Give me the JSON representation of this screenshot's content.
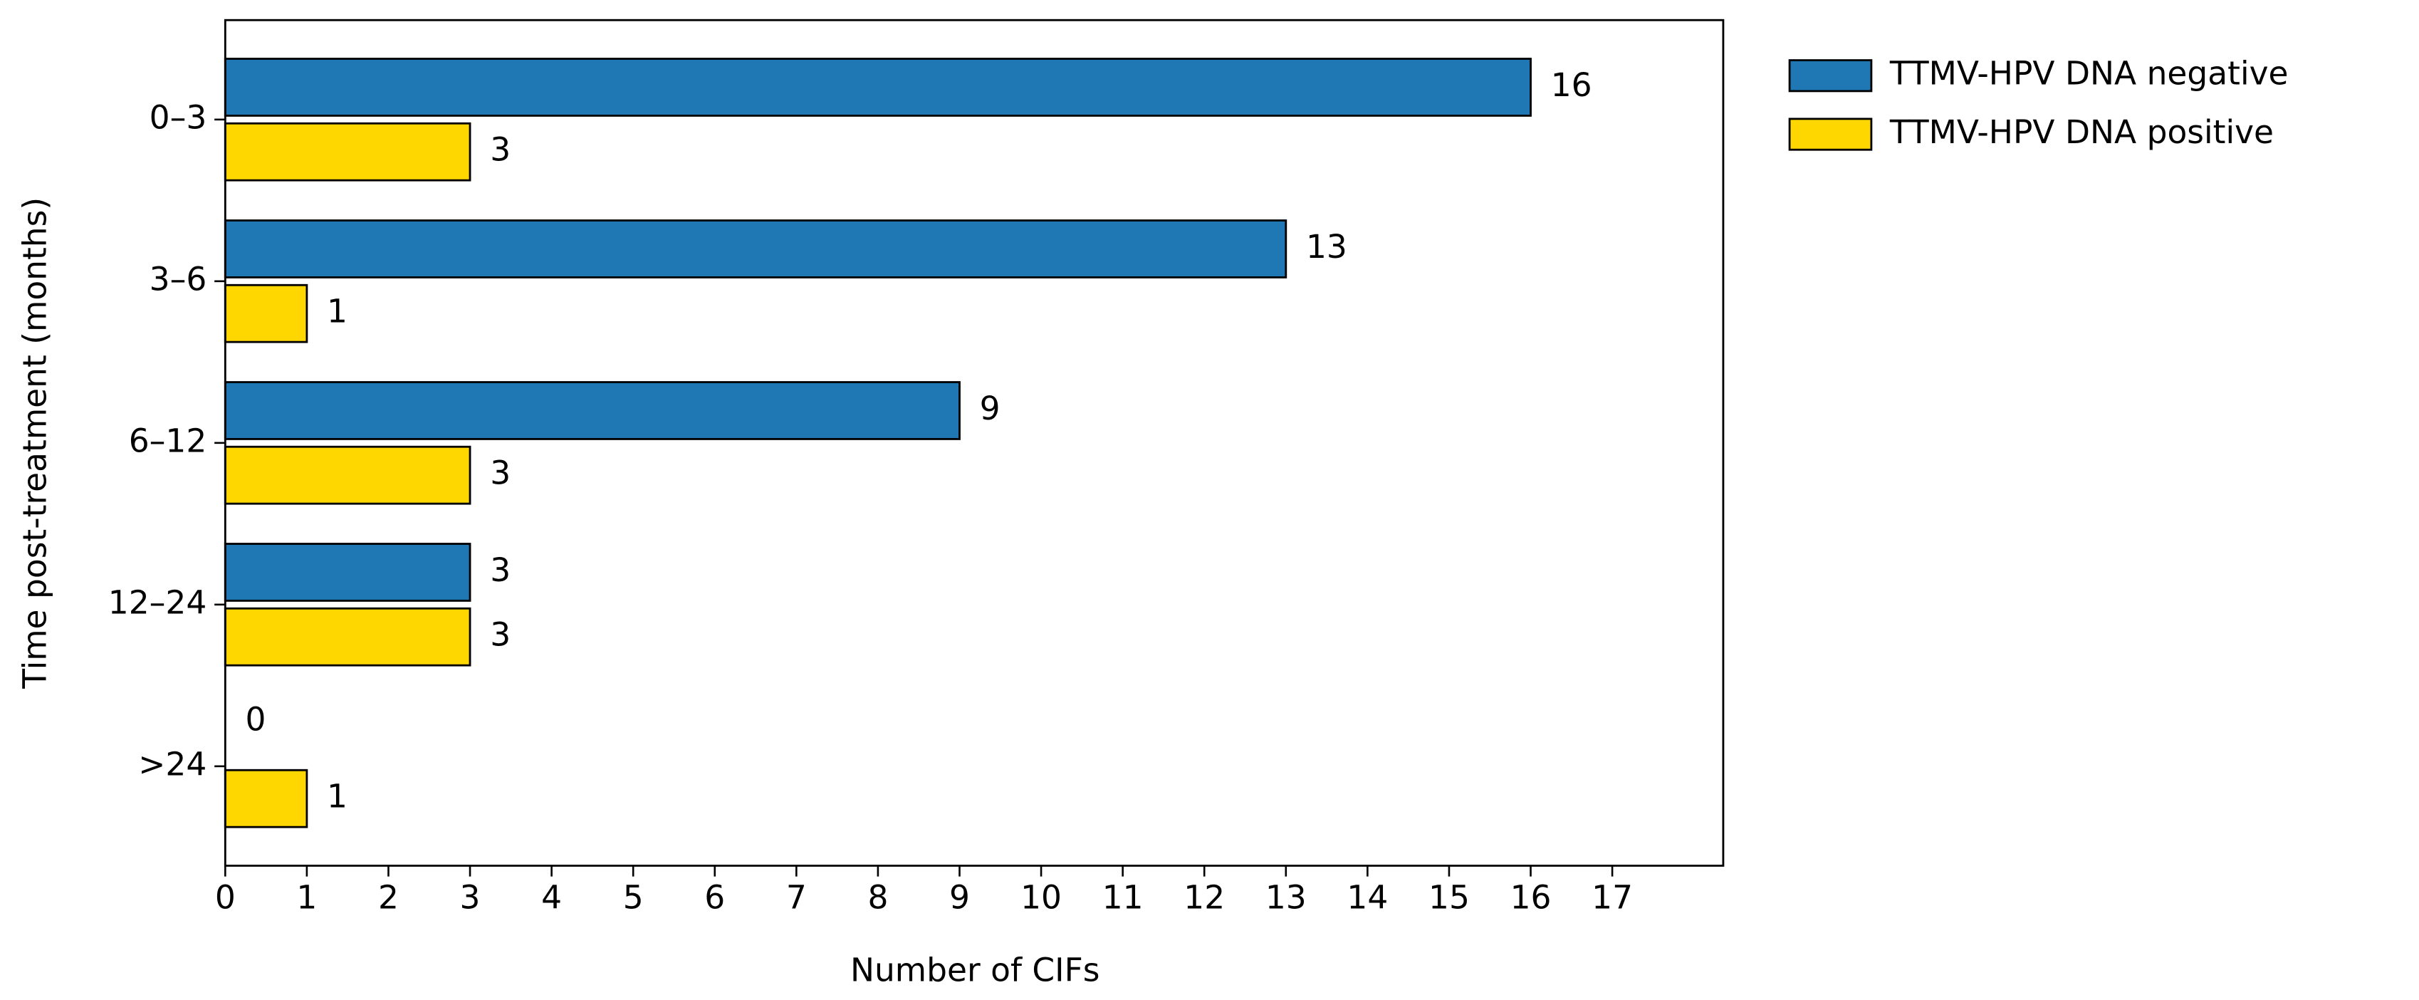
{
  "chart_data": {
    "type": "hbar",
    "xlabel": "Number of CIFs",
    "ylabel": "Time post-treatment (months)",
    "categories": [
      "0–3",
      "3–6",
      "6–12",
      "12–24",
      ">24"
    ],
    "series": [
      {
        "name": "TTMV-HPV DNA negative",
        "color": "#1f77b4",
        "values": [
          16,
          13,
          9,
          3,
          0
        ]
      },
      {
        "name": "TTMV-HPV DNA positive",
        "color": "#ffd700",
        "values": [
          3,
          1,
          3,
          3,
          1
        ]
      }
    ],
    "xlim": [
      0,
      18.36
    ],
    "xticks": [
      0,
      1,
      2,
      3,
      4,
      5,
      6,
      7,
      8,
      9,
      10,
      11,
      12,
      13,
      14,
      15,
      16,
      17
    ],
    "legend": "outside upper right"
  }
}
